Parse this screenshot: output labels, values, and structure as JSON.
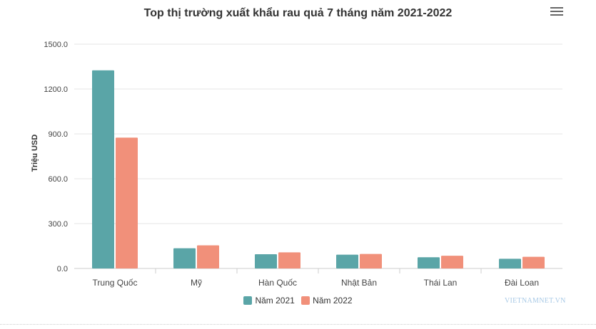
{
  "chart_data": {
    "type": "bar",
    "title": "Top thị trường xuất khẩu rau quả 7 tháng năm 2021-2022",
    "ylabel": "Triệu USD",
    "xlabel": "",
    "categories": [
      "Trung Quốc",
      "Mỹ",
      "Hàn Quốc",
      "Nhật Bản",
      "Thái Lan",
      "Đài Loan"
    ],
    "series": [
      {
        "name": "Năm 2021",
        "values": [
          1325,
          135,
          95,
          92,
          75,
          65
        ],
        "color": "#5aa5a7"
      },
      {
        "name": "Năm 2022",
        "values": [
          875,
          155,
          108,
          97,
          85,
          78
        ],
        "color": "#f1907a"
      }
    ],
    "ylim": [
      0,
      1500
    ],
    "yticks": [
      "0.0",
      "300.0",
      "600.0",
      "900.0",
      "1200.0",
      "1500.0"
    ],
    "grid": true,
    "legend_position": "bottom-center"
  },
  "watermark": "VIETNAMNET.VN",
  "icons": {
    "menu": "hamburger-menu-icon"
  }
}
